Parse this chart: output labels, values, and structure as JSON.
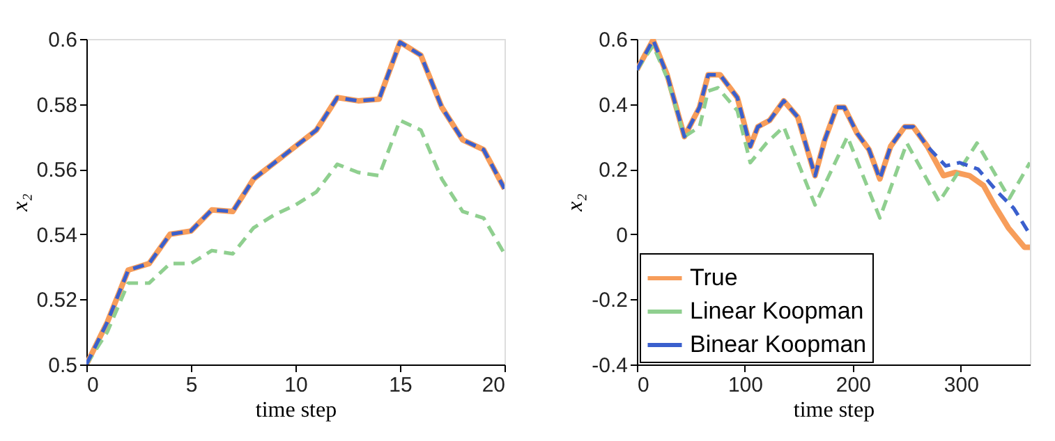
{
  "chart_data": [
    {
      "type": "line",
      "xlabel": "time step",
      "ylabel": "x₂",
      "xlim": [
        0,
        20
      ],
      "ylim": [
        0.5,
        0.6
      ],
      "xticks": [
        0,
        5,
        10,
        15,
        20
      ],
      "yticks": [
        0.5,
        0.52,
        0.54,
        0.56,
        0.58,
        0.6
      ],
      "grid": false,
      "legend": false,
      "marker": "none",
      "series": [
        {
          "color": "#f79d5a",
          "line_style": "solid",
          "x": [
            0,
            1,
            2,
            3,
            4,
            5,
            6,
            7,
            8,
            9,
            10,
            11,
            12,
            13,
            14,
            15,
            16,
            17,
            18,
            19,
            20
          ],
          "values": [
            0.5,
            0.513,
            0.529,
            0.531,
            0.54,
            0.541,
            0.5475,
            0.547,
            0.557,
            0.562,
            0.567,
            0.572,
            0.582,
            0.581,
            0.5815,
            0.599,
            0.595,
            0.579,
            0.569,
            0.566,
            0.554
          ]
        },
        {
          "color": "#8fcf8f",
          "line_style": "dashed",
          "x": [
            0,
            1,
            2,
            3,
            4,
            5,
            6,
            7,
            8,
            9,
            10,
            11,
            12,
            13,
            14,
            15,
            16,
            17,
            18,
            19,
            20
          ],
          "values": [
            0.5,
            0.51,
            0.525,
            0.525,
            0.531,
            0.531,
            0.535,
            0.534,
            0.542,
            0.546,
            0.549,
            0.553,
            0.5615,
            0.559,
            0.558,
            0.575,
            0.572,
            0.557,
            0.547,
            0.545,
            0.534
          ]
        },
        {
          "color": "#3a5fcd",
          "line_style": "dashed",
          "x": [
            0,
            1,
            2,
            3,
            4,
            5,
            6,
            7,
            8,
            9,
            10,
            11,
            12,
            13,
            14,
            15,
            16,
            17,
            18,
            19,
            20
          ],
          "values": [
            0.5,
            0.513,
            0.529,
            0.531,
            0.54,
            0.541,
            0.5475,
            0.547,
            0.557,
            0.562,
            0.567,
            0.572,
            0.582,
            0.581,
            0.5815,
            0.599,
            0.595,
            0.579,
            0.569,
            0.566,
            0.554
          ]
        }
      ]
    },
    {
      "type": "line",
      "xlabel": "time step",
      "ylabel": "x₂",
      "xlim": [
        0,
        364
      ],
      "ylim": [
        -0.4,
        0.6
      ],
      "xticks": [
        0,
        100,
        200,
        300
      ],
      "yticks": [
        -0.4,
        -0.2,
        0,
        0.2,
        0.4,
        0.6
      ],
      "grid": false,
      "legend": "bottom left",
      "marker": "none",
      "series": [
        {
          "name": "True",
          "color": "#f79d5a",
          "line_style": "solid",
          "x": [
            0,
            15,
            28,
            44,
            58,
            66,
            77,
            93,
            105,
            112,
            123,
            136,
            149,
            165,
            174,
            185,
            192,
            204,
            215,
            225,
            235,
            248,
            256,
            269,
            284,
            295,
            308,
            321,
            331,
            344,
            359,
            364
          ],
          "values": [
            0.505,
            0.597,
            0.49,
            0.3,
            0.39,
            0.49,
            0.49,
            0.42,
            0.27,
            0.33,
            0.35,
            0.41,
            0.36,
            0.18,
            0.29,
            0.39,
            0.39,
            0.31,
            0.26,
            0.17,
            0.27,
            0.33,
            0.33,
            0.27,
            0.18,
            0.19,
            0.18,
            0.15,
            0.09,
            0.02,
            -0.04,
            -0.04
          ]
        },
        {
          "name": "Linear Koopman",
          "color": "#8fcf8f",
          "line_style": "dashed",
          "x": [
            0,
            15,
            28,
            44,
            58,
            66,
            75,
            93,
            105,
            120,
            136,
            165,
            195,
            225,
            250,
            280,
            315,
            345,
            364
          ],
          "values": [
            0.505,
            0.58,
            0.48,
            0.3,
            0.33,
            0.44,
            0.45,
            0.38,
            0.22,
            0.28,
            0.33,
            0.09,
            0.3,
            0.05,
            0.28,
            0.1,
            0.28,
            0.11,
            0.22
          ]
        },
        {
          "name": "Binear Koopman",
          "color": "#3a5fcd",
          "line_style": "dashed",
          "x": [
            0,
            15,
            28,
            44,
            58,
            66,
            77,
            93,
            105,
            112,
            123,
            136,
            149,
            165,
            174,
            185,
            192,
            204,
            215,
            225,
            235,
            248,
            256,
            269,
            286,
            299,
            316,
            334,
            349,
            362
          ],
          "values": [
            0.505,
            0.597,
            0.49,
            0.3,
            0.39,
            0.49,
            0.49,
            0.42,
            0.27,
            0.33,
            0.35,
            0.41,
            0.36,
            0.18,
            0.29,
            0.39,
            0.39,
            0.31,
            0.26,
            0.17,
            0.27,
            0.33,
            0.33,
            0.27,
            0.21,
            0.22,
            0.2,
            0.13,
            0.08,
            0.01
          ]
        }
      ]
    }
  ]
}
